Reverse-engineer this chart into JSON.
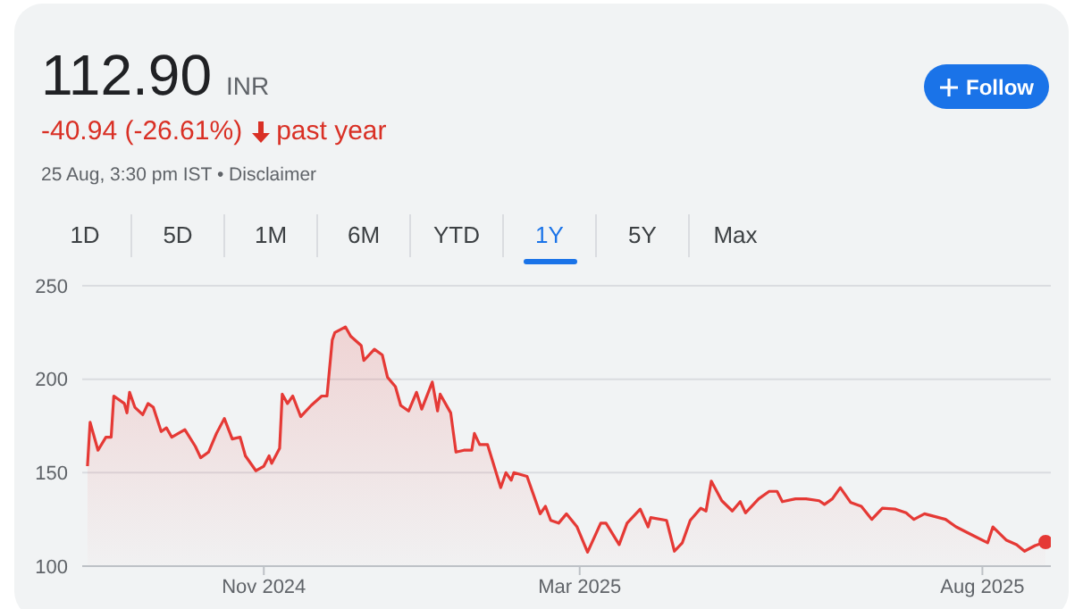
{
  "chart_data": {
    "type": "area",
    "title": "112.90",
    "subtitle": "INR",
    "annotations": [
      "-40.94 (-26.61%)",
      "past year",
      "25 Aug, 3:30 pm IST • Disclaimer",
      "Follow",
      "1D",
      "5D",
      "1M",
      "6M",
      "YTD",
      "1Y",
      "5Y",
      "Max"
    ],
    "x": [
      "2024-08-26",
      "2024-08-27",
      "2024-08-30",
      "2024-09-02",
      "2024-09-04",
      "2024-09-05",
      "2024-09-09",
      "2024-09-10",
      "2024-09-11",
      "2024-09-13",
      "2024-09-16",
      "2024-09-18",
      "2024-09-20",
      "2024-09-23",
      "2024-09-25",
      "2024-09-27",
      "2024-10-02",
      "2024-10-06",
      "2024-10-08",
      "2024-10-11",
      "2024-10-14",
      "2024-10-17",
      "2024-10-20",
      "2024-10-23",
      "2024-10-25",
      "2024-10-29",
      "2024-11-01",
      "2024-11-03",
      "2024-11-04",
      "2024-11-07",
      "2024-11-08",
      "2024-11-10",
      "2024-11-12",
      "2024-11-15",
      "2024-11-19",
      "2024-11-23",
      "2024-11-25",
      "2024-11-27",
      "2024-11-28",
      "2024-12-02",
      "2024-12-04",
      "2024-12-08",
      "2024-12-09",
      "2024-12-13",
      "2024-12-16",
      "2024-12-18",
      "2024-12-21",
      "2024-12-23",
      "2024-12-26",
      "2024-12-29",
      "2024-12-31",
      "2025-01-04",
      "2025-01-06",
      "2025-01-07",
      "2025-01-11",
      "2025-01-13",
      "2025-01-16",
      "2025-01-19",
      "2025-01-20",
      "2025-01-22",
      "2025-01-25",
      "2025-01-30",
      "2025-02-01",
      "2025-02-03",
      "2025-02-04",
      "2025-02-09",
      "2025-02-14",
      "2025-02-16",
      "2025-02-18",
      "2025-02-21",
      "2025-02-24",
      "2025-02-28",
      "2025-03-04",
      "2025-03-09",
      "2025-03-11",
      "2025-03-16",
      "2025-03-19",
      "2025-03-24",
      "2025-03-27",
      "2025-03-28",
      "2025-04-03",
      "2025-04-06",
      "2025-04-09",
      "2025-04-12",
      "2025-04-16",
      "2025-04-18",
      "2025-04-20",
      "2025-04-24",
      "2025-04-28",
      "2025-05-01",
      "2025-05-03",
      "2025-05-08",
      "2025-05-12",
      "2025-05-15",
      "2025-05-17",
      "2025-05-22",
      "2025-05-26",
      "2025-05-31",
      "2025-06-02",
      "2025-06-05",
      "2025-06-08",
      "2025-06-12",
      "2025-06-16",
      "2025-06-20",
      "2025-06-24",
      "2025-06-29",
      "2025-07-03",
      "2025-07-06",
      "2025-07-10",
      "2025-07-18",
      "2025-07-22",
      "2025-07-29",
      "2025-08-03",
      "2025-08-05",
      "2025-08-10",
      "2025-08-14",
      "2025-08-17",
      "2025-08-21",
      "2025-08-25"
    ],
    "series": [
      {
        "color": "#e53935",
        "values": [
          153.5,
          177,
          162,
          169,
          169,
          191,
          187,
          182,
          193,
          185,
          181,
          187,
          185,
          172,
          174,
          169,
          173,
          164,
          158,
          161,
          171,
          179,
          168,
          169,
          159,
          151,
          153.5,
          159,
          155,
          163,
          192,
          187,
          191,
          180,
          186,
          191,
          191,
          221,
          225,
          228,
          223,
          218,
          210,
          216,
          213,
          201,
          196,
          186,
          183,
          193,
          184,
          198.5,
          183,
          192,
          182,
          161,
          162,
          162,
          171,
          165,
          165,
          142,
          150,
          146,
          150,
          148,
          128,
          132,
          124.5,
          123,
          128,
          121,
          107.5,
          123,
          123,
          111.5,
          123,
          130.5,
          121,
          126,
          124.5,
          108,
          112.5,
          124.5,
          131,
          129.5,
          145.5,
          135,
          129.5,
          134.5,
          128.5,
          136,
          140,
          140,
          134.5,
          136,
          136,
          135,
          133,
          136,
          142,
          134,
          132,
          125,
          131,
          130.5,
          128.5,
          125,
          128,
          125,
          121,
          116,
          112.5,
          121,
          114,
          111.5,
          108,
          111,
          112.9
        ]
      }
    ],
    "xlim": [
      "2024-08-24",
      "2025-08-27"
    ],
    "xticks": [
      {
        "value": "2024-11-01",
        "label": "Nov 2024"
      },
      {
        "value": "2025-03-01",
        "label": "Mar 2025"
      },
      {
        "value": "2025-08-01",
        "label": "Aug 2025"
      }
    ],
    "ylim": [
      100,
      250
    ],
    "yticks": [
      100,
      150,
      200,
      250
    ],
    "grid": "y"
  }
}
